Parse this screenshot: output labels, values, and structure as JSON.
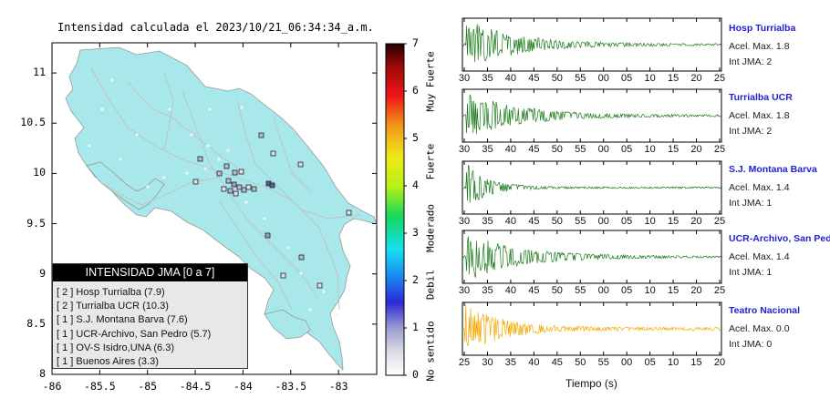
{
  "map": {
    "title": "Intensidad calculada el 2023/10/21_06:34:34_a.m.",
    "x_ticks": [
      "-86",
      "-85.5",
      "-85",
      "-84.5",
      "-84",
      "-83.5",
      "-83"
    ],
    "y_ticks": [
      "11",
      "10.5",
      "10",
      "9.5",
      "9",
      "8.5",
      "8"
    ],
    "legend": {
      "title": "INTENSIDAD JMA [0 a 7]",
      "rows": [
        "[ 2 ]  Hosp Turrialba (7.9)",
        "[ 2 ]  Turrialba UCR (10.3)",
        "[ 1 ]  S.J. Montana Barva (7.6)",
        "[ 1 ]  UCR-Archivo, San Pedro (5.7)",
        "[ 1 ]  OV-S Isidro,UNA (6.3)",
        "[ 1 ]  Buenos Aires (3.3)"
      ]
    },
    "colorbar": {
      "ticks": [
        "0",
        "1",
        "2",
        "3",
        "4",
        "5",
        "6",
        "7"
      ],
      "zone_labels": [
        "No sentido",
        "Debil",
        "Moderado",
        "Fuerte",
        "Muy Fuerte"
      ]
    }
  },
  "waveforms": {
    "xlabel": "Tiempo (s)",
    "panels": [
      {
        "station": "Hosp Turrialba",
        "acel": "Acel. Max. 1.8",
        "int": "Int JMA: 2",
        "ticks": [
          "30",
          "35",
          "40",
          "45",
          "50",
          "55",
          "00",
          "05",
          "10",
          "15",
          "20",
          "25"
        ],
        "color": "#1a7a1a"
      },
      {
        "station": "Turrialba UCR",
        "acel": "Acel. Max. 1.8",
        "int": "Int JMA: 2",
        "ticks": [
          "30",
          "35",
          "40",
          "45",
          "50",
          "55",
          "00",
          "05",
          "10",
          "15",
          "20",
          "25"
        ],
        "color": "#1a7a1a"
      },
      {
        "station": "S.J. Montana Barva",
        "acel": "Acel. Max. 1.4",
        "int": "Int JMA: 1",
        "ticks": [
          "30",
          "35",
          "40",
          "45",
          "50",
          "55",
          "00",
          "05",
          "10",
          "15",
          "20",
          "25"
        ],
        "color": "#1a7a1a"
      },
      {
        "station": "UCR-Archivo, San Pedro",
        "acel": "Acel. Max. 1.4",
        "int": "Int JMA: 1",
        "ticks": [
          "30",
          "35",
          "40",
          "45",
          "50",
          "55",
          "00",
          "05",
          "10",
          "15",
          "20",
          "25"
        ],
        "color": "#1a7a1a"
      },
      {
        "station": "Teatro Nacional",
        "acel": "Acel. Max. 0.0",
        "int": "Int JMA: 0",
        "ticks": [
          "25",
          "30",
          "35",
          "40",
          "45",
          "50",
          "55",
          "00",
          "05",
          "10",
          "15",
          "20"
        ],
        "color": "#f5a800"
      }
    ]
  },
  "chart_data": [
    {
      "type": "scatter",
      "title": "Intensidad calculada el 2023/10/21_06:34:34_a.m.",
      "xlabel": "",
      "ylabel": "",
      "xlim": [
        -86,
        -82.6
      ],
      "ylim": [
        8,
        11.3
      ],
      "stations": [
        {
          "x": -83.68,
          "y": 9.9,
          "intensity": 2,
          "label": "Hosp Turrialba"
        },
        {
          "x": -83.65,
          "y": 9.88,
          "intensity": 2,
          "label": "Turrialba UCR"
        },
        {
          "x": -84.02,
          "y": 10.06,
          "intensity": 1,
          "label": "S.J. Montana Barva"
        },
        {
          "x": -84.05,
          "y": 9.94,
          "intensity": 1,
          "label": "UCR-Archivo, San Pedro"
        },
        {
          "x": -83.92,
          "y": 10.03,
          "intensity": 1,
          "label": "OV-S Isidro,UNA"
        },
        {
          "x": -83.33,
          "y": 9.16,
          "intensity": 1,
          "label": "Buenos Aires"
        }
      ],
      "colorbar": {
        "min": 0,
        "max": 7
      }
    },
    {
      "type": "line",
      "xlabel": "Tiempo (s)",
      "series": [
        {
          "name": "Hosp Turrialba",
          "peak_acceleration": 1.8,
          "jma_intensity": 2
        },
        {
          "name": "Turrialba UCR",
          "peak_acceleration": 1.8,
          "jma_intensity": 2
        },
        {
          "name": "S.J. Montana Barva",
          "peak_acceleration": 1.4,
          "jma_intensity": 1
        },
        {
          "name": "UCR-Archivo, San Pedro",
          "peak_acceleration": 1.4,
          "jma_intensity": 1
        },
        {
          "name": "Teatro Nacional",
          "peak_acceleration": 0.0,
          "jma_intensity": 0
        }
      ]
    }
  ]
}
